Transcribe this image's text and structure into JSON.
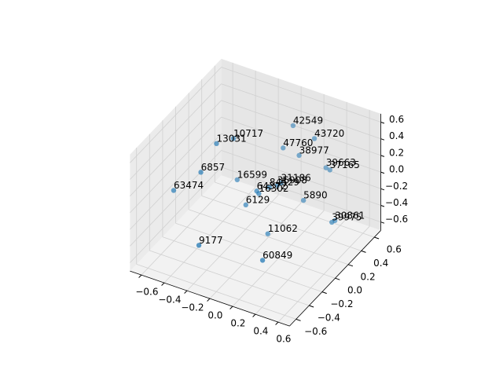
{
  "chart_data": {
    "type": "scatter3d",
    "color": "#1f77b4",
    "xlim": [
      -0.7,
      0.7
    ],
    "ylim": [
      -0.7,
      0.7
    ],
    "zlim": [
      -0.7,
      0.7
    ],
    "xticks": [
      {
        "value": -0.6,
        "label": "−0.6"
      },
      {
        "value": -0.4,
        "label": "−0.4"
      },
      {
        "value": -0.2,
        "label": "−0.2"
      },
      {
        "value": 0,
        "label": "0.0"
      },
      0.2,
      0.4,
      0.6
    ],
    "yticks": [
      {
        "value": -0.6,
        "label": "−0.6"
      },
      {
        "value": -0.4,
        "label": "−0.4"
      },
      {
        "value": -0.2,
        "label": "−0.2"
      },
      {
        "value": 0,
        "label": "0.0"
      },
      0.2,
      0.4,
      0.6
    ],
    "zticks": [
      {
        "value": -0.6,
        "label": "−0.6"
      },
      {
        "value": -0.4,
        "label": "−0.4"
      },
      {
        "value": -0.2,
        "label": "−0.2"
      },
      {
        "value": 0,
        "label": "0.0"
      },
      0.2,
      0.4,
      0.6
    ],
    "grid": true,
    "series": [
      {
        "labels": [
          "42549",
          "43720",
          "10717",
          "13031",
          "47760",
          "38977",
          "39663",
          "37165",
          "6857",
          "16599",
          "31186",
          "63474",
          "64372",
          "16302",
          "84529",
          "36908",
          "6129",
          "5890",
          "30861",
          "39975",
          "11062",
          "9177",
          "60849"
        ],
        "x": [
          0.09,
          0.26,
          -0.17,
          -0.25,
          0.06,
          0.16,
          0.31,
          0.35,
          -0.33,
          -0.2,
          0.11,
          -0.5,
          0,
          0.03,
          0.06,
          0.1,
          -0.09,
          0.21,
          0.44,
          0.43,
          0.08,
          -0.25,
          0.16
        ],
        "y": [
          0.42,
          0.45,
          -0.04,
          -0.16,
          0.32,
          0.39,
          0.54,
          0.53,
          -0.26,
          0.07,
          0.2,
          -0.38,
          0.02,
          0,
          0.11,
          0.16,
          0.01,
          0.37,
          0.45,
          0.42,
          0.05,
          -0.43,
          -0.17
        ],
        "z": [
          0.5,
          0.4,
          0.6,
          0.6,
          0.3,
          0.2,
          0,
          0,
          0.3,
          0,
          0,
          0.1,
          0,
          0,
          0,
          0,
          -0.2,
          -0.3,
          -0.5,
          -0.5,
          -0.5,
          -0.4,
          -0.6
        ]
      }
    ]
  }
}
